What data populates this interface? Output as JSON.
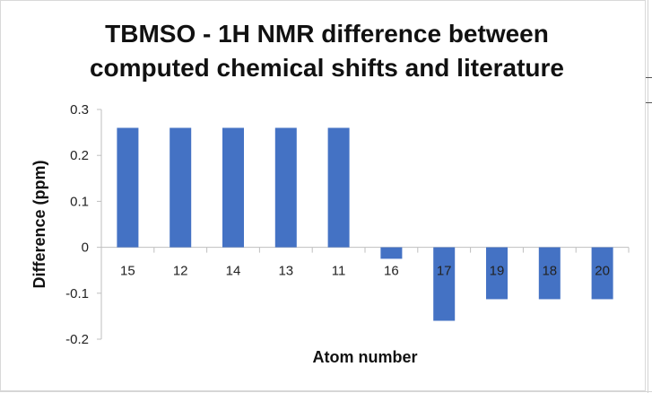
{
  "chart_data": {
    "type": "bar",
    "title": "TBMSO - 1H NMR difference between computed chemical shifts and literature",
    "title_lines": [
      "TBMSO - 1H NMR difference between",
      "computed chemical shifts and literature"
    ],
    "xlabel": "Atom number",
    "ylabel": "Difference (ppm)",
    "ylim": [
      -0.2,
      0.3
    ],
    "yticks": [
      0.3,
      0.2,
      0.1,
      0,
      -0.1,
      -0.2
    ],
    "ytick_labels": [
      "0.3",
      "0.2",
      "0.1",
      "0",
      "-0.1",
      "-0.2"
    ],
    "categories": [
      "15",
      "12",
      "14",
      "13",
      "11",
      "16",
      "17",
      "19",
      "18",
      "20"
    ],
    "values": [
      0.26,
      0.26,
      0.26,
      0.26,
      0.26,
      -0.025,
      -0.16,
      -0.113,
      -0.113,
      -0.113
    ],
    "bar_color": "#4472C4",
    "grid": false,
    "legend": "none"
  }
}
